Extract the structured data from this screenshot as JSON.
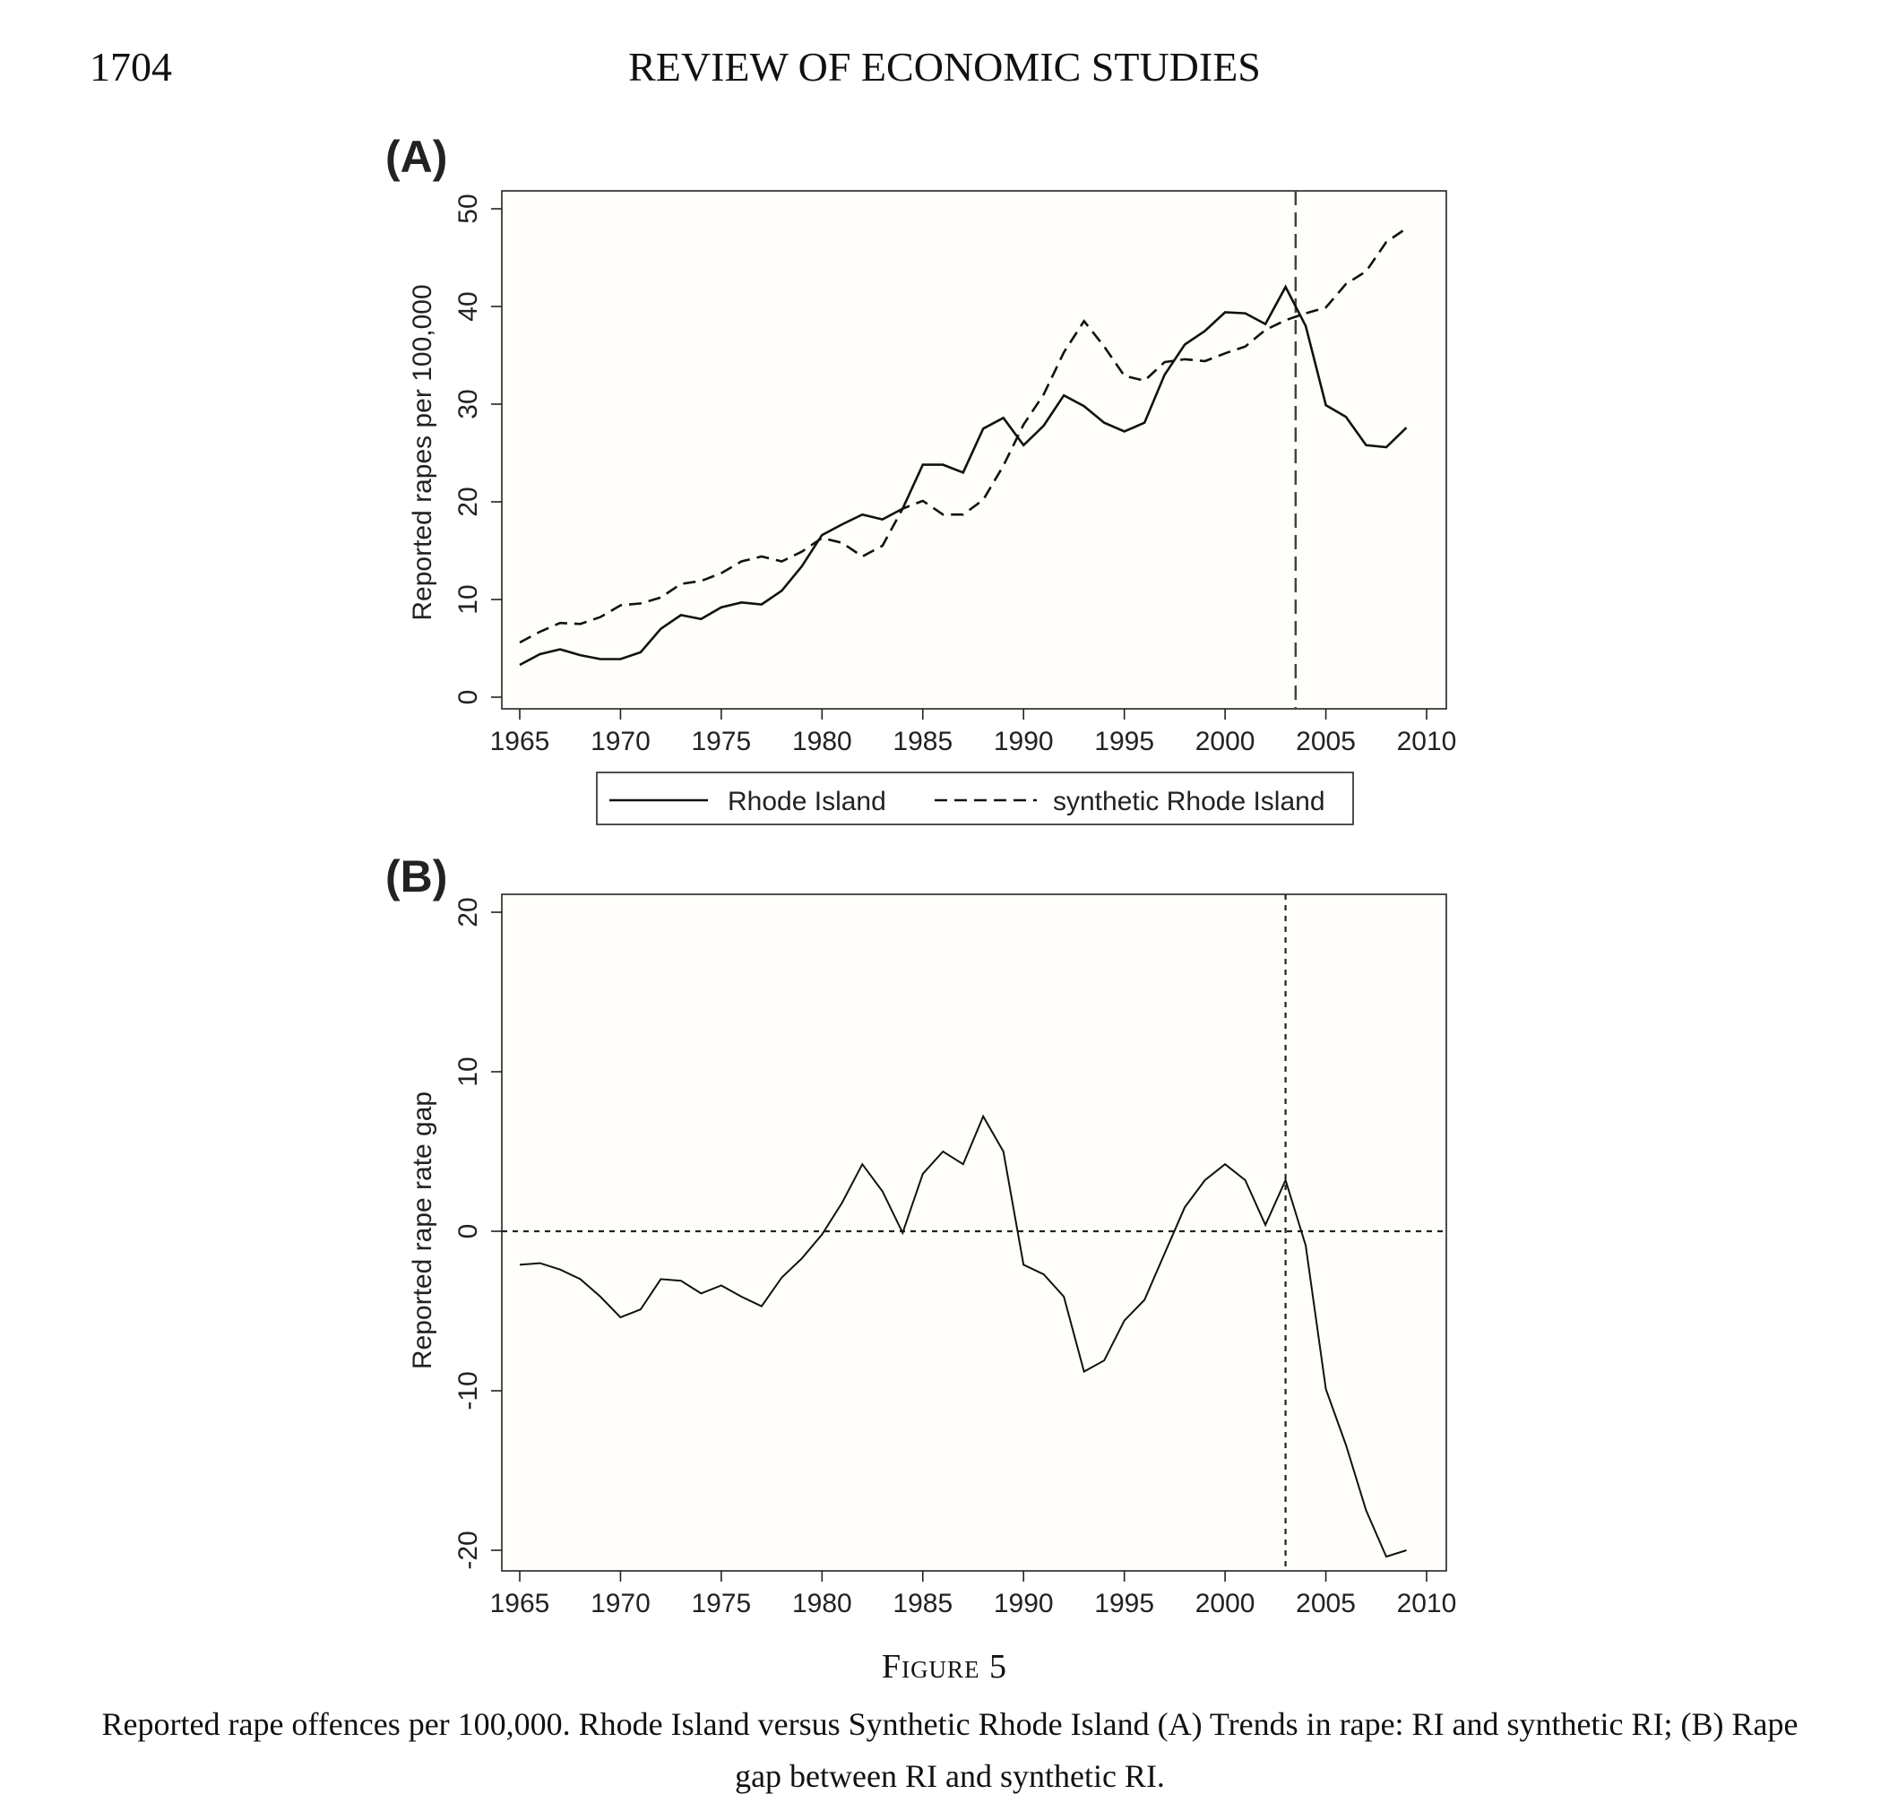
{
  "header": {
    "page_number": "1704",
    "journal_title": "REVIEW OF ECONOMIC STUDIES"
  },
  "caption": {
    "figure_label": "Figure 5",
    "text": "Reported rape offences per 100,000. Rhode Island versus Synthetic Rhode Island (A) Trends in rape: RI and synthetic RI; (B) Rape gap between RI and synthetic RI."
  },
  "chart_data": [
    {
      "panel": "(A)",
      "type": "line",
      "ylabel": "Reported rapes per 100,000",
      "xlim": [
        1965,
        2010
      ],
      "ylim": [
        0,
        50
      ],
      "xticks": [
        "1965",
        "1970",
        "1975",
        "1980",
        "1985",
        "1990",
        "1995",
        "2000",
        "2005",
        "2010"
      ],
      "yticks": [
        "0",
        "10",
        "20",
        "30",
        "40",
        "50"
      ],
      "vline": 2003.5,
      "legend_position": "bottom",
      "x": [
        1965,
        1966,
        1967,
        1968,
        1969,
        1970,
        1971,
        1972,
        1973,
        1974,
        1975,
        1976,
        1977,
        1978,
        1979,
        1980,
        1981,
        1982,
        1983,
        1984,
        1985,
        1986,
        1987,
        1988,
        1989,
        1990,
        1991,
        1992,
        1993,
        1994,
        1995,
        1996,
        1997,
        1998,
        1999,
        2000,
        2001,
        2002,
        2003,
        2004,
        2005,
        2006,
        2007,
        2008,
        2009
      ],
      "series": [
        {
          "name": "Rhode Island",
          "style": "solid",
          "values": [
            3.3,
            4.4,
            4.9,
            4.3,
            3.9,
            3.9,
            4.6,
            7.0,
            8.4,
            8.0,
            9.2,
            9.7,
            9.5,
            10.9,
            13.4,
            16.6,
            17.7,
            18.7,
            18.2,
            19.3,
            23.8,
            23.8,
            23.0,
            27.5,
            28.6,
            25.8,
            27.8,
            30.9,
            29.8,
            28.1,
            27.2,
            28.1,
            33.0,
            36.1,
            37.5,
            39.4,
            39.3,
            38.2,
            42.0,
            38.0,
            29.9,
            28.7,
            25.8,
            25.6,
            27.6
          ]
        },
        {
          "name": "synthetic Rhode Island",
          "style": "dashed",
          "values": [
            5.6,
            6.7,
            7.6,
            7.5,
            8.2,
            9.4,
            9.6,
            10.2,
            11.6,
            11.9,
            12.7,
            13.9,
            14.4,
            13.9,
            14.9,
            16.3,
            15.8,
            14.4,
            15.5,
            19.3,
            20.1,
            18.7,
            18.7,
            20.2,
            23.7,
            27.9,
            31.0,
            35.3,
            38.5,
            35.9,
            32.9,
            32.4,
            34.3,
            34.6,
            34.4,
            35.2,
            35.9,
            37.6,
            38.6,
            39.3,
            39.9,
            42.3,
            43.6,
            46.6,
            48.0
          ]
        }
      ]
    },
    {
      "panel": "(B)",
      "type": "line",
      "ylabel": "Reported rape rate gap",
      "xlim": [
        1965,
        2010
      ],
      "ylim": [
        -21,
        21
      ],
      "xticks": [
        "1965",
        "1970",
        "1975",
        "1980",
        "1985",
        "1990",
        "1995",
        "2000",
        "2005",
        "2010"
      ],
      "yticks": [
        "-20",
        "-10",
        "0",
        "10",
        "20"
      ],
      "hline": 0,
      "vline": 2003,
      "x": [
        1965,
        1966,
        1967,
        1968,
        1969,
        1970,
        1971,
        1972,
        1973,
        1974,
        1975,
        1976,
        1977,
        1978,
        1979,
        1980,
        1981,
        1982,
        1983,
        1984,
        1985,
        1986,
        1987,
        1988,
        1989,
        1990,
        1991,
        1992,
        1993,
        1994,
        1995,
        1996,
        1997,
        1998,
        1999,
        2000,
        2001,
        2002,
        2003,
        2004,
        2005,
        2006,
        2007,
        2008,
        2009
      ],
      "series": [
        {
          "name": "",
          "style": "solid",
          "values": [
            -2.1,
            -2.0,
            -2.4,
            -3.0,
            -4.1,
            -5.4,
            -4.9,
            -3.0,
            -3.1,
            -3.9,
            -3.4,
            -4.1,
            -4.7,
            -2.9,
            -1.7,
            -0.2,
            1.8,
            4.2,
            2.5,
            -0.1,
            3.6,
            5.0,
            4.2,
            7.2,
            5.0,
            -2.1,
            -2.7,
            -4.1,
            -8.8,
            -8.1,
            -5.6,
            -4.3,
            -1.4,
            1.5,
            3.2,
            4.2,
            3.2,
            0.4,
            3.2,
            -0.9,
            -9.9,
            -13.4,
            -17.5,
            -20.4,
            -20.0
          ]
        }
      ]
    }
  ]
}
